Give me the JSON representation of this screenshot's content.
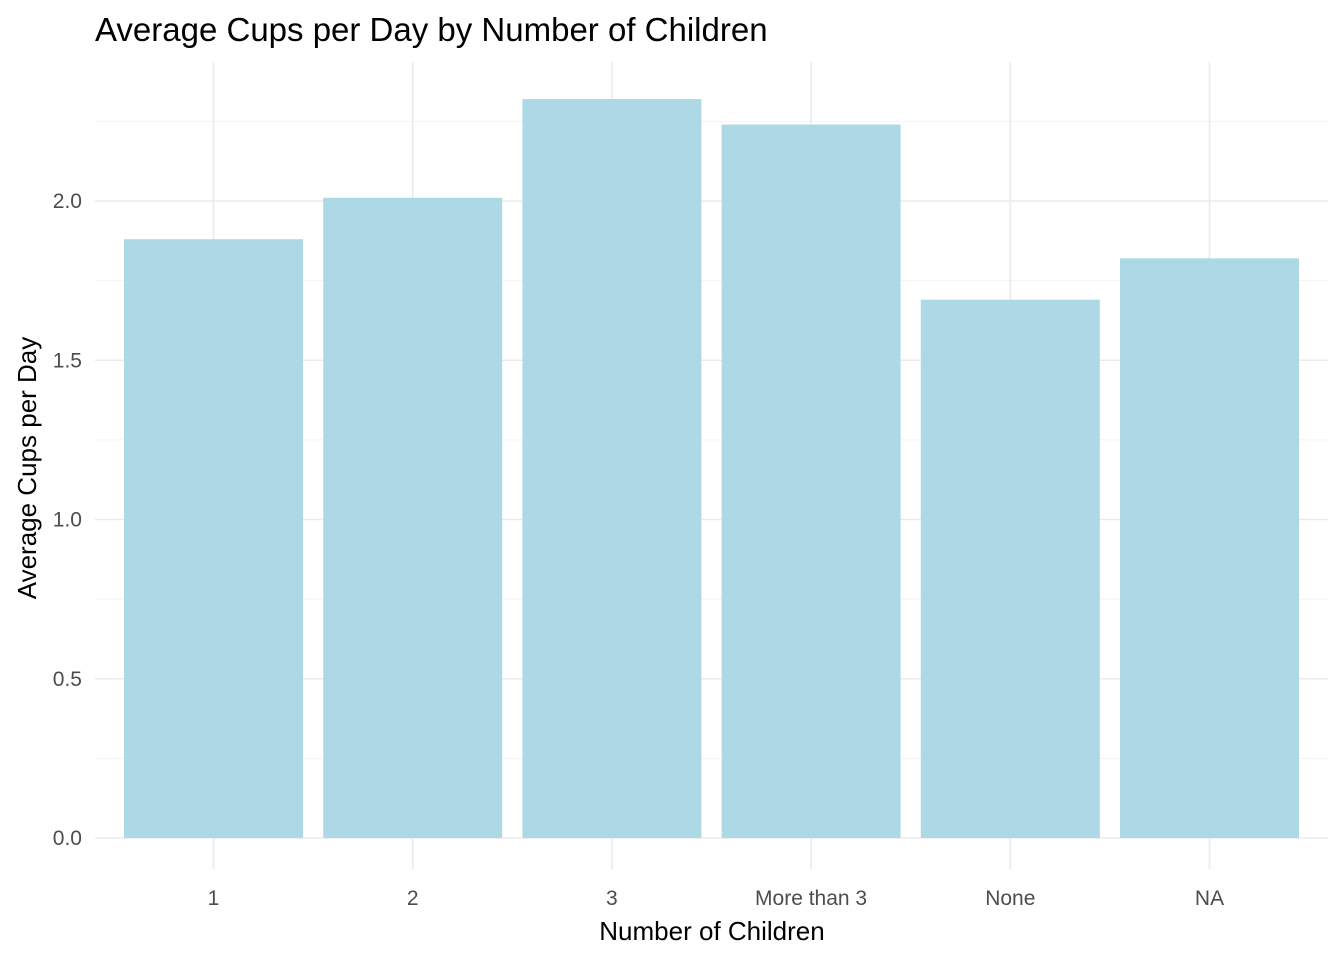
{
  "chart_data": {
    "type": "bar",
    "title": "Average Cups per Day by Number of Children",
    "xlabel": "Number of Children",
    "ylabel": "Average Cups per Day",
    "categories": [
      "1",
      "2",
      "3",
      "More than 3",
      "None",
      "NA"
    ],
    "values": [
      1.88,
      2.01,
      2.32,
      2.24,
      1.69,
      1.82
    ],
    "ylim": [
      0,
      2.32
    ],
    "yticks": [
      "0.0",
      "0.5",
      "1.0",
      "1.5",
      "2.0"
    ],
    "grid": true,
    "bar_color": "#add8e6"
  }
}
